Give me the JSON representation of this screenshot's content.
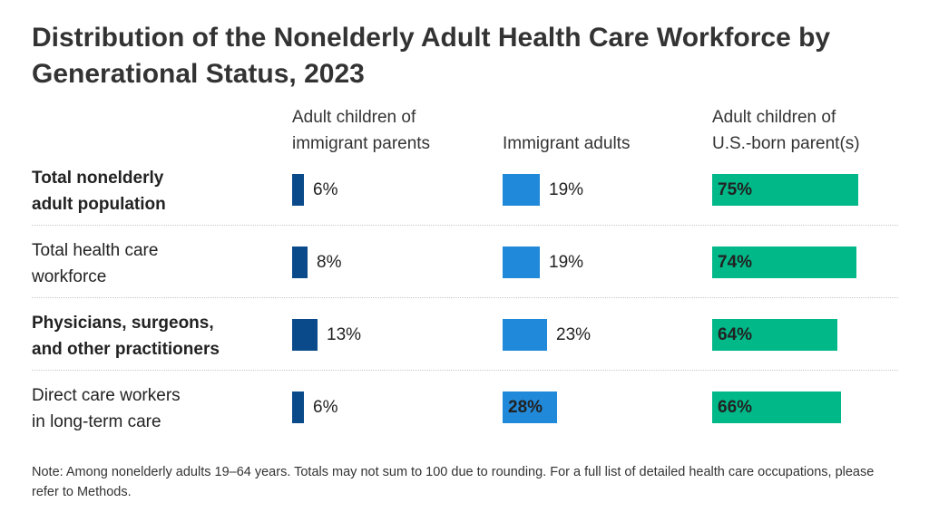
{
  "title": "Distribution of the Nonelderly Adult Health Care Workforce by Generational Status, 2023",
  "note": "Note: Among nonelderly adults 19–64 years. Totals may not sum to 100 due to rounding. For a full list of detailed health care occupations, please refer to Methods.",
  "colors": {
    "adult_children_immigrant": "#0a4a8a",
    "immigrant_adults": "#2189d9",
    "adult_children_usborn": "#00b888"
  },
  "chart_data": {
    "type": "bar",
    "orientation": "horizontal",
    "layout": "small-multiples-table",
    "unit": "%",
    "categories": [
      "Total nonelderly\nadult population",
      "Total health care\nworkforce",
      "Physicians, surgeons,\nand other practitioners",
      "Direct care workers\nin long-term care"
    ],
    "category_bold": [
      true,
      false,
      true,
      false
    ],
    "series": [
      {
        "name": "Adult children of\nimmigrant parents",
        "values": [
          6,
          8,
          13,
          6
        ],
        "labels": [
          "6%",
          "8%",
          "13%",
          "6%"
        ]
      },
      {
        "name": "Immigrant adults",
        "values": [
          19,
          19,
          23,
          28
        ],
        "labels": [
          "19%",
          "19%",
          "23%",
          "28%"
        ]
      },
      {
        "name": "Adult children of\nU.S.-born parent(s)",
        "values": [
          75,
          74,
          64,
          66
        ],
        "labels": [
          "75%",
          "74%",
          "64%",
          "66%"
        ]
      }
    ],
    "grid": false,
    "legend": "column-headers"
  }
}
